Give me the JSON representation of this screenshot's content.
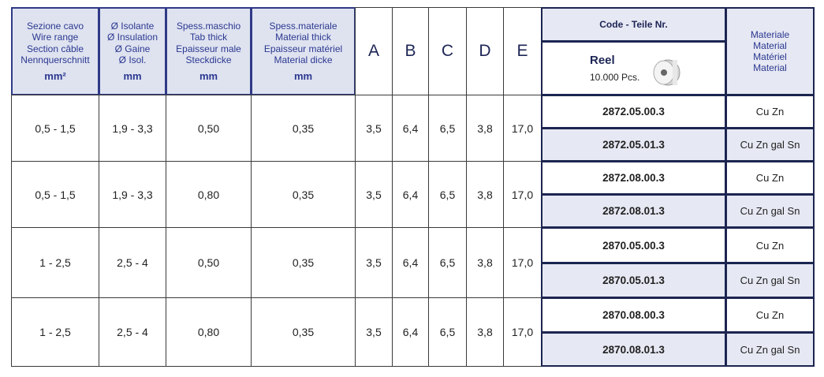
{
  "header": {
    "columns": [
      [
        "Sezione cavo",
        "Wire range",
        "Section câble",
        "Nennquerschnitt",
        "mm²"
      ],
      [
        "Ø Isolante",
        "Ø Insulation",
        "Ø Gaine",
        "Ø Isol.",
        "mm"
      ],
      [
        "Spess.maschio",
        "Tab thick",
        "Epaisseur male",
        "Steckdicke",
        "mm"
      ],
      [
        "Spess.materiale",
        "Material thick",
        "Epaisseur matériel",
        "Material dicke",
        "mm"
      ]
    ],
    "letters": [
      "A",
      "B",
      "C",
      "D",
      "E"
    ],
    "code_header": "Code - Teile Nr.",
    "reel": "Reel",
    "reel_quantity": "10.000 Pcs.",
    "material_header": [
      "Materiale",
      "Material",
      "Matériel",
      "Material"
    ]
  },
  "rows": [
    {
      "cells": [
        "0,5 - 1,5",
        "1,9 - 3,3",
        "0,50",
        "0,35",
        "3,5",
        "6,4",
        "6,5",
        "3,8",
        "17,0"
      ],
      "variants": [
        {
          "code": "2872.05.00.3",
          "material": "Cu Zn"
        },
        {
          "code": "2872.05.01.3",
          "material": "Cu Zn gal Sn"
        }
      ]
    },
    {
      "cells": [
        "0,5 - 1,5",
        "1,9 - 3,3",
        "0,80",
        "0,35",
        "3,5",
        "6,4",
        "6,5",
        "3,8",
        "17,0"
      ],
      "variants": [
        {
          "code": "2872.08.00.3",
          "material": "Cu Zn"
        },
        {
          "code": "2872.08.01.3",
          "material": "Cu Zn gal Sn"
        }
      ]
    },
    {
      "cells": [
        "1 - 2,5",
        "2,5 - 4",
        "0,50",
        "0,35",
        "3,5",
        "6,4",
        "6,5",
        "3,8",
        "17,0"
      ],
      "variants": [
        {
          "code": "2870.05.00.3",
          "material": "Cu Zn"
        },
        {
          "code": "2870.05.01.3",
          "material": "Cu Zn gal Sn"
        }
      ]
    },
    {
      "cells": [
        "1 - 2,5",
        "2,5 - 4",
        "0,80",
        "0,35",
        "3,5",
        "6,4",
        "6,5",
        "3,8",
        "17,0"
      ],
      "variants": [
        {
          "code": "2870.08.00.3",
          "material": "Cu Zn"
        },
        {
          "code": "2870.08.01.3",
          "material": "Cu Zn gal Sn"
        }
      ]
    }
  ]
}
